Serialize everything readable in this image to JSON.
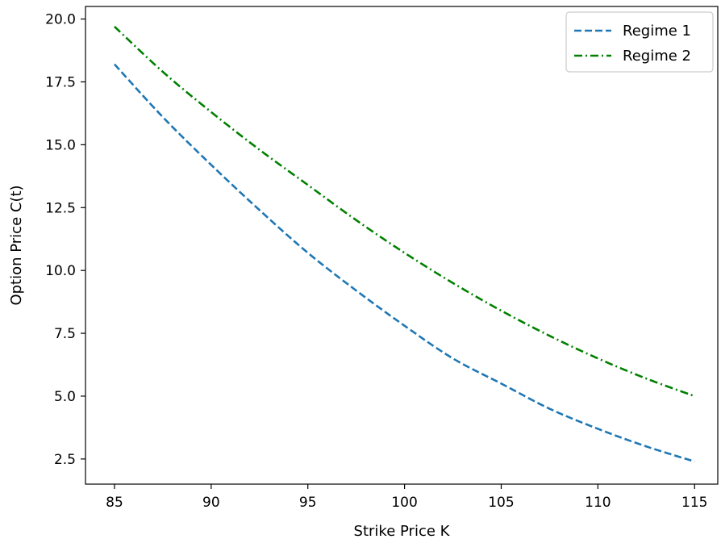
{
  "chart_data": {
    "type": "line",
    "title": "",
    "xlabel": "Strike Price K",
    "ylabel": "Option Price C(t)",
    "xlim": [
      83.5,
      116.2
    ],
    "ylim": [
      1.5,
      20.5
    ],
    "xticks": [
      85,
      90,
      95,
      100,
      105,
      110,
      115
    ],
    "xtick_labels": [
      "85",
      "90",
      "95",
      "100",
      "105",
      "110",
      "115"
    ],
    "yticks": [
      2.5,
      5.0,
      7.5,
      10.0,
      12.5,
      15.0,
      17.5,
      20.0
    ],
    "ytick_labels": [
      "2.5",
      "5.0",
      "7.5",
      "10.0",
      "12.5",
      "15.0",
      "17.5",
      "20.0"
    ],
    "grid": false,
    "legend_position": "top-right",
    "x": [
      85,
      87.5,
      90,
      92.5,
      95,
      97.5,
      100,
      102.5,
      105,
      107.5,
      110,
      112.5,
      115
    ],
    "series": [
      {
        "name": "Regime 1",
        "color": "#1f77b4",
        "linestyle": "dashed",
        "values": [
          18.2,
          16.1,
          14.2,
          12.4,
          10.7,
          9.2,
          7.8,
          6.5,
          5.5,
          4.5,
          3.7,
          3.0,
          2.4
        ]
      },
      {
        "name": "Regime 2",
        "color": "#008000",
        "linestyle": "dashdot",
        "values": [
          19.7,
          17.9,
          16.3,
          14.8,
          13.4,
          12.0,
          10.7,
          9.5,
          8.4,
          7.4,
          6.5,
          5.7,
          5.0
        ]
      }
    ]
  }
}
